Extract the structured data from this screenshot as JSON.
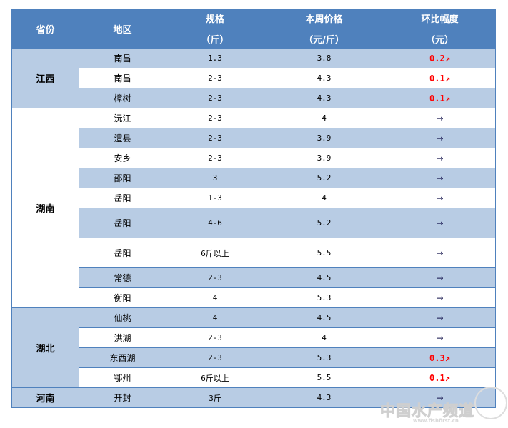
{
  "header": {
    "province": "省份",
    "region": "地区",
    "spec": "规格",
    "spec_unit": "（斤）",
    "price": "本周价格",
    "price_unit": "（元/斤）",
    "change": "环比幅度",
    "change_unit": "（元）"
  },
  "colors": {
    "header_bg": "#4f81bd",
    "band": "#b8cce4",
    "up": "#ff0000",
    "flat": "#10104a"
  },
  "groups": [
    {
      "province": "江西",
      "shade": "blue",
      "rows": [
        {
          "region": "南昌",
          "spec": "1.3",
          "price": "3.8",
          "change": "0.2↗",
          "trend": "up"
        },
        {
          "region": "南昌",
          "spec": "2-3",
          "price": "4.3",
          "change": "0.1↗",
          "trend": "up"
        },
        {
          "region": "樟树",
          "spec": "2-3",
          "price": "4.3",
          "change": "0.1↗",
          "trend": "up"
        }
      ]
    },
    {
      "province": "湖南",
      "shade": "white",
      "rows": [
        {
          "region": "沅江",
          "spec": "2-3",
          "price": "4",
          "change": "→",
          "trend": "flat"
        },
        {
          "region": "澧县",
          "spec": "2-3",
          "price": "3.9",
          "change": "→",
          "trend": "flat"
        },
        {
          "region": "安乡",
          "spec": "2-3",
          "price": "3.9",
          "change": "→",
          "trend": "flat"
        },
        {
          "region": "邵阳",
          "spec": "3",
          "price": "5.2",
          "change": "→",
          "trend": "flat"
        },
        {
          "region": "岳阳",
          "spec": "1-3",
          "price": "4",
          "change": "→",
          "trend": "flat"
        },
        {
          "region": "岳阳",
          "spec": "4-6",
          "price": "5.2",
          "change": "→",
          "trend": "flat",
          "tall": true
        },
        {
          "region": "岳阳",
          "spec": "6斤以上",
          "price": "5.5",
          "change": "→",
          "trend": "flat",
          "tall": true
        },
        {
          "region": "常德",
          "spec": "2-3",
          "price": "4.5",
          "change": "→",
          "trend": "flat"
        },
        {
          "region": "衡阳",
          "spec": "4",
          "price": "5.3",
          "change": "→",
          "trend": "flat"
        }
      ]
    },
    {
      "province": "湖北",
      "shade": "blue",
      "rows": [
        {
          "region": "仙桃",
          "spec": "4",
          "price": "4.5",
          "change": "→",
          "trend": "flat"
        },
        {
          "region": "洪湖",
          "spec": "2-3",
          "price": "4",
          "change": "→",
          "trend": "flat"
        },
        {
          "region": "东西湖",
          "spec": "2-3",
          "price": "5.3",
          "change": "0.3↗",
          "trend": "up"
        },
        {
          "region": "鄂州",
          "spec": "6斤以上",
          "price": "5.5",
          "change": "0.1↗",
          "trend": "up"
        }
      ]
    },
    {
      "province": "河南",
      "shade": "blue",
      "rows": [
        {
          "region": "开封",
          "spec": "3斤",
          "price": "4.3",
          "change": "→",
          "trend": "flat"
        }
      ]
    }
  ],
  "watermark": {
    "text": "中国水产频道",
    "url": "www.fishfirst.cn"
  }
}
